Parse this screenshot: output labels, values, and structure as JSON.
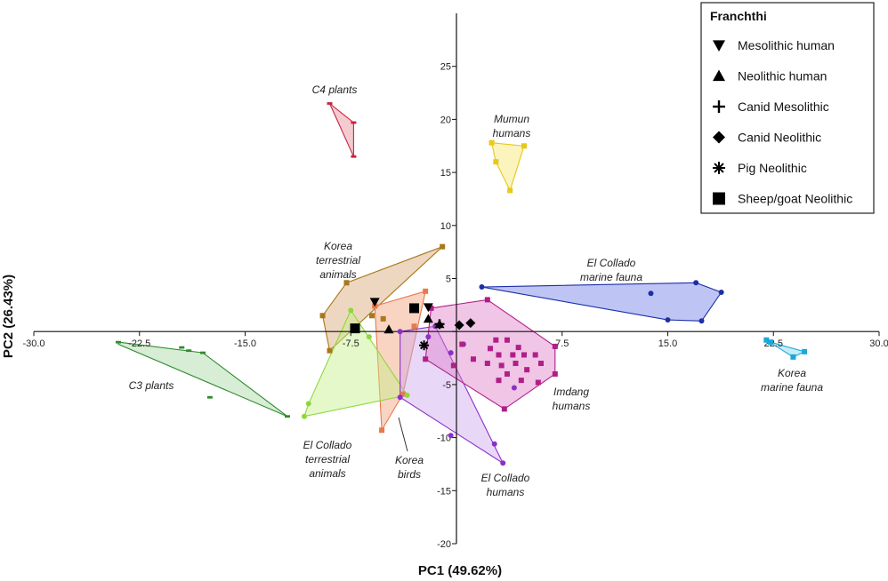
{
  "chart_data": {
    "type": "scatter",
    "xlabel": "PC1 (49.62%)",
    "ylabel": "PC2 (26.43%)",
    "xlim": [
      -30,
      30
    ],
    "ylim": [
      -20,
      30
    ],
    "xticks": [
      -30.0,
      -22.5,
      -15.0,
      -7.5,
      0,
      7.5,
      15.0,
      22.5,
      30.0
    ],
    "xtick_labels": [
      "-30.0",
      "-22.5",
      "-15.0",
      "-7.5",
      "",
      "7.5",
      "15.0",
      "22.5",
      "30.0"
    ],
    "yticks": [
      -20,
      -15,
      -10,
      -5,
      0,
      5,
      10,
      15,
      20,
      25
    ],
    "ytick_labels": [
      "-20",
      "-15",
      "-10",
      "-5",
      "",
      "5",
      "10",
      "15",
      "20",
      "25"
    ],
    "grid": false,
    "legend": {
      "title": "Franchthi",
      "position": "top-right",
      "entries": [
        {
          "label": "Mesolithic human",
          "marker": "triangle-down"
        },
        {
          "label": "Neolithic human",
          "marker": "triangle-up"
        },
        {
          "label": "Canid Mesolithic",
          "marker": "plus"
        },
        {
          "label": "Canid Neolithic",
          "marker": "diamond"
        },
        {
          "label": "Pig Neolithic",
          "marker": "asterisk"
        },
        {
          "label": "Sheep/goat Neolithic",
          "marker": "square"
        }
      ]
    },
    "groups": [
      {
        "label": "C4 plants",
        "color": "#c8233f",
        "fill": "#e8899a",
        "marker": "dash",
        "hull": [
          [
            -9.0,
            21.5
          ],
          [
            -7.3,
            19.7
          ],
          [
            -7.3,
            16.5
          ]
        ],
        "points": [
          [
            -9.0,
            21.5
          ],
          [
            -7.3,
            19.7
          ],
          [
            -7.3,
            16.5
          ]
        ]
      },
      {
        "label": "Mumun humans",
        "color": "#e8c81a",
        "fill": "#f7e66b",
        "marker": "square",
        "hull": [
          [
            2.5,
            17.8
          ],
          [
            4.8,
            17.5
          ],
          [
            3.8,
            13.3
          ],
          [
            2.8,
            16.0
          ]
        ],
        "points": [
          [
            2.5,
            17.8
          ],
          [
            4.8,
            17.5
          ],
          [
            3.8,
            13.3
          ],
          [
            2.8,
            16.0
          ]
        ]
      },
      {
        "label": "Korea terrestrial animals",
        "color": "#a8781a",
        "fill": "#d9a774",
        "marker": "square",
        "hull": [
          [
            -9.5,
            1.5
          ],
          [
            -7.8,
            4.6
          ],
          [
            -1.0,
            8.0
          ],
          [
            -9.0,
            -1.8
          ]
        ],
        "points": [
          [
            -9.5,
            1.5
          ],
          [
            -7.8,
            4.6
          ],
          [
            -1.0,
            8.0
          ],
          [
            -9.0,
            -1.8
          ],
          [
            -6.0,
            1.5
          ],
          [
            -5.2,
            1.2
          ]
        ]
      },
      {
        "label": "Korea birds",
        "color": "#e87a4a",
        "fill": "#f2a07a",
        "marker": "square",
        "hull": [
          [
            -5.8,
            2.4
          ],
          [
            -2.2,
            3.8
          ],
          [
            -3.8,
            -5.9
          ],
          [
            -5.3,
            -9.3
          ]
        ],
        "points": [
          [
            -5.8,
            2.4
          ],
          [
            -2.2,
            3.8
          ],
          [
            -3.8,
            -5.9
          ],
          [
            -5.3,
            -9.3
          ],
          [
            -3.0,
            0.5
          ]
        ]
      },
      {
        "label": "El Collado marine fauna",
        "color": "#1d2fa8",
        "fill": "#6f7fe6",
        "marker": "circle",
        "hull": [
          [
            1.8,
            4.2
          ],
          [
            17.0,
            4.6
          ],
          [
            18.8,
            3.7
          ],
          [
            17.4,
            1.0
          ],
          [
            15.0,
            1.1
          ]
        ],
        "points": [
          [
            1.8,
            4.2
          ],
          [
            17.0,
            4.6
          ],
          [
            18.8,
            3.7
          ],
          [
            17.4,
            1.0
          ],
          [
            15.0,
            1.1
          ],
          [
            13.8,
            3.6
          ]
        ]
      },
      {
        "label": "Korea marine fauna",
        "color": "#1aa8d8",
        "fill": "#7fd6f0",
        "marker": "square",
        "hull": [
          [
            22.0,
            -0.8
          ],
          [
            23.9,
            -2.4
          ],
          [
            24.7,
            -1.9
          ],
          [
            22.3,
            -1.0
          ]
        ],
        "points": [
          [
            22.0,
            -0.8
          ],
          [
            23.9,
            -2.4
          ],
          [
            24.7,
            -1.9
          ],
          [
            22.3,
            -1.0
          ]
        ]
      },
      {
        "label": "C3 plants",
        "color": "#2e8b2e",
        "fill": "#a7d6a1",
        "marker": "dash",
        "hull": [
          [
            -24.0,
            -1.0
          ],
          [
            -18.0,
            -2.0
          ],
          [
            -12.0,
            -8.0
          ],
          [
            -24.0,
            -1.2
          ]
        ],
        "points": [
          [
            -24.0,
            -1.0
          ],
          [
            -18.0,
            -2.0
          ],
          [
            -12.0,
            -8.0
          ],
          [
            -19.0,
            -1.8
          ],
          [
            -17.5,
            -6.2
          ],
          [
            -19.5,
            -1.5
          ]
        ]
      },
      {
        "label": "El Collado terrestrial animals",
        "color": "#8ed83a",
        "fill": "#c6f08a",
        "marker": "circle",
        "hull": [
          [
            -7.5,
            2.0
          ],
          [
            -3.5,
            -6.0
          ],
          [
            -10.8,
            -8.0
          ],
          [
            -10.5,
            -6.8
          ]
        ],
        "points": [
          [
            -7.5,
            2.0
          ],
          [
            -3.5,
            -6.0
          ],
          [
            -10.8,
            -8.0
          ],
          [
            -10.5,
            -6.8
          ],
          [
            -6.2,
            -0.5
          ]
        ]
      },
      {
        "label": "El Collado humans",
        "color": "#8b2fc8",
        "fill": "#cfa6ee",
        "marker": "circle",
        "hull": [
          [
            -4.0,
            0.0
          ],
          [
            -1.5,
            0.5
          ],
          [
            3.3,
            -12.4
          ],
          [
            -4.0,
            -6.2
          ]
        ],
        "points": [
          [
            -4.0,
            0.0
          ],
          [
            -1.5,
            0.5
          ],
          [
            3.3,
            -12.4
          ],
          [
            -4.0,
            -6.2
          ],
          [
            2.7,
            -10.6
          ],
          [
            -0.4,
            -9.8
          ],
          [
            -0.4,
            -2.0
          ],
          [
            4.1,
            -5.3
          ],
          [
            -2.0,
            -0.5
          ],
          [
            0.5,
            -1.2
          ]
        ]
      },
      {
        "label": "Imdang humans",
        "color": "#b01f88",
        "fill": "#dd7fc8",
        "marker": "square",
        "hull": [
          [
            -1.8,
            2.2
          ],
          [
            2.2,
            3.0
          ],
          [
            7.0,
            -1.4
          ],
          [
            7.0,
            -4.0
          ],
          [
            3.4,
            -7.3
          ],
          [
            -2.2,
            -2.6
          ]
        ],
        "points": [
          [
            -1.8,
            2.2
          ],
          [
            2.2,
            3.0
          ],
          [
            7.0,
            -1.4
          ],
          [
            7.0,
            -4.0
          ],
          [
            3.4,
            -7.3
          ],
          [
            -2.2,
            -2.6
          ],
          [
            2.8,
            -0.8
          ],
          [
            3.6,
            -0.8
          ],
          [
            4.4,
            -1.5
          ],
          [
            5.6,
            -2.2
          ],
          [
            2.4,
            -1.6
          ],
          [
            3.0,
            -2.2
          ],
          [
            4.0,
            -2.2
          ],
          [
            4.8,
            -2.2
          ],
          [
            2.2,
            -3.0
          ],
          [
            3.2,
            -3.2
          ],
          [
            4.2,
            -3.0
          ],
          [
            5.0,
            -3.6
          ],
          [
            3.6,
            -4.0
          ],
          [
            4.6,
            -4.6
          ],
          [
            5.8,
            -4.8
          ],
          [
            3.0,
            -4.6
          ],
          [
            0.4,
            -1.2
          ],
          [
            -0.2,
            -3.2
          ],
          [
            6.0,
            -3.0
          ],
          [
            1.2,
            -2.6
          ]
        ]
      }
    ],
    "franchthi_points": [
      {
        "marker": "triangle-down",
        "x": -5.8,
        "y": 2.8
      },
      {
        "marker": "triangle-down",
        "x": -2.0,
        "y": 2.3
      },
      {
        "marker": "triangle-up",
        "x": -4.8,
        "y": 0.2
      },
      {
        "marker": "triangle-up",
        "x": -2.0,
        "y": 1.2
      },
      {
        "marker": "triangle-up",
        "x": -1.2,
        "y": 0.7
      },
      {
        "marker": "plus",
        "x": -1.2,
        "y": 0.7
      },
      {
        "marker": "diamond",
        "x": 0.2,
        "y": 0.6
      },
      {
        "marker": "diamond",
        "x": 1.0,
        "y": 0.8
      },
      {
        "marker": "asterisk",
        "x": -2.3,
        "y": -1.3
      },
      {
        "marker": "square",
        "x": -7.2,
        "y": 0.3
      },
      {
        "marker": "square",
        "x": -3.0,
        "y": 2.2
      }
    ]
  }
}
